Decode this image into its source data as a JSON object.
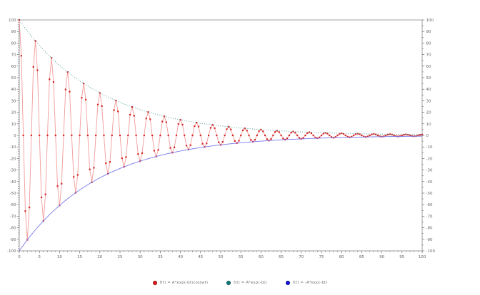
{
  "figure": {
    "background_color": "#ffffff",
    "frame_color": "#8a8a8a",
    "tick_color": "#555555",
    "tick_label_color": "#666666"
  },
  "chart_data": {
    "type": "line",
    "title": "",
    "xlabel": "",
    "ylabel": "",
    "xlim": [
      0,
      100
    ],
    "ylim": [
      -100,
      100
    ],
    "grid": false,
    "legend_position": "bottom-center",
    "axes": {
      "x": {
        "min": 0,
        "max": 100,
        "label_step": 5,
        "minor_step": 1
      },
      "y_left": {
        "min": -100,
        "max": 100,
        "label_step": 10,
        "minor_step": 2
      },
      "y_right": {
        "min": -100,
        "max": 100,
        "label_step": 10,
        "minor_step": 5
      }
    },
    "params": {
      "A": 100,
      "b": 0.05,
      "w": 1.5708
    },
    "sampling": {
      "t_start": 0,
      "t_end": 100,
      "t_step": 0.5
    },
    "envelope_reference_values": {
      "t": [
        0,
        10,
        20,
        30,
        40,
        50,
        60,
        70,
        80,
        90,
        100
      ],
      "upper": [
        100,
        60.7,
        36.8,
        22.3,
        13.5,
        8.2,
        5.0,
        3.0,
        1.8,
        1.1,
        0.7
      ],
      "lower": [
        -100,
        -60.7,
        -36.8,
        -22.3,
        -13.5,
        -8.2,
        -5.0,
        -3.0,
        -1.8,
        -1.1,
        -0.7
      ]
    },
    "series": [
      {
        "id": "damped-cosine",
        "label": "f(t) = A*exp(-bt)cos(wt)",
        "formula": "A*exp(-b*t)*cos(w*t)",
        "line_color": "#f29b9b",
        "marker_color": "#d42626",
        "legend_color": "#e01b1b",
        "line_style": "solid",
        "markers": true
      },
      {
        "id": "upper-envelope",
        "label": "f(t) = A*exp(-bt)",
        "formula": "A*exp(-b*t)",
        "line_color": "#3b9393",
        "marker_color": "",
        "legend_color": "#0d7d7d",
        "line_style": "dotted",
        "markers": false
      },
      {
        "id": "lower-envelope",
        "label": "f(t) = -A*exp(-bt)",
        "formula": "-A*exp(-b*t)",
        "line_color": "#7a7ae8",
        "marker_color": "",
        "legend_color": "#1515dd",
        "line_style": "solid",
        "markers": false
      }
    ]
  }
}
